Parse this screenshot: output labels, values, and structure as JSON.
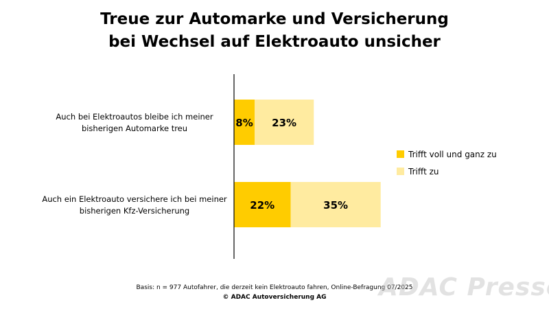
{
  "chart_data": {
    "type": "bar",
    "orientation": "horizontal",
    "stacked": true,
    "title": "Treue zur Automarke und Versicherung bei Wechsel auf Elektroauto unsicher",
    "title_lines": [
      "Treue zur Automarke und Versicherung",
      "bei Wechsel auf Elektroauto unsicher"
    ],
    "categories": [
      {
        "full": "Auch bei Elektroautos bleibe ich meiner bisherigen Automarke treu",
        "lines": [
          "Auch bei Elektroautos bleibe ich meiner",
          "bisherigen Automarke treu"
        ]
      },
      {
        "full": "Auch ein Elektroauto versichere ich bei meiner bisherigen Kfz-Versicherung",
        "lines": [
          "Auch ein Elektroauto versichere ich bei meiner",
          "bisherigen Kfz-Versicherung"
        ]
      }
    ],
    "series": [
      {
        "name": "Trifft voll und ganz zu",
        "color": "#FFCC00",
        "values": [
          8,
          22
        ],
        "labels": [
          "8%",
          "22%"
        ]
      },
      {
        "name": "Trifft zu",
        "color": "#FFEBA0",
        "values": [
          23,
          35
        ],
        "labels": [
          "23%",
          "35%"
        ]
      }
    ],
    "unit": "%",
    "xlim": [
      0,
      100
    ],
    "grid": false,
    "legend_position": "right"
  },
  "footer": {
    "basis": "Basis: n = 977  Autofahrer, die derzeit kein Elektroauto fahren, Online-Befragung 07/2025",
    "copyright": "© ADAC Autoversicherung AG"
  },
  "watermark": "ADAC Presse"
}
